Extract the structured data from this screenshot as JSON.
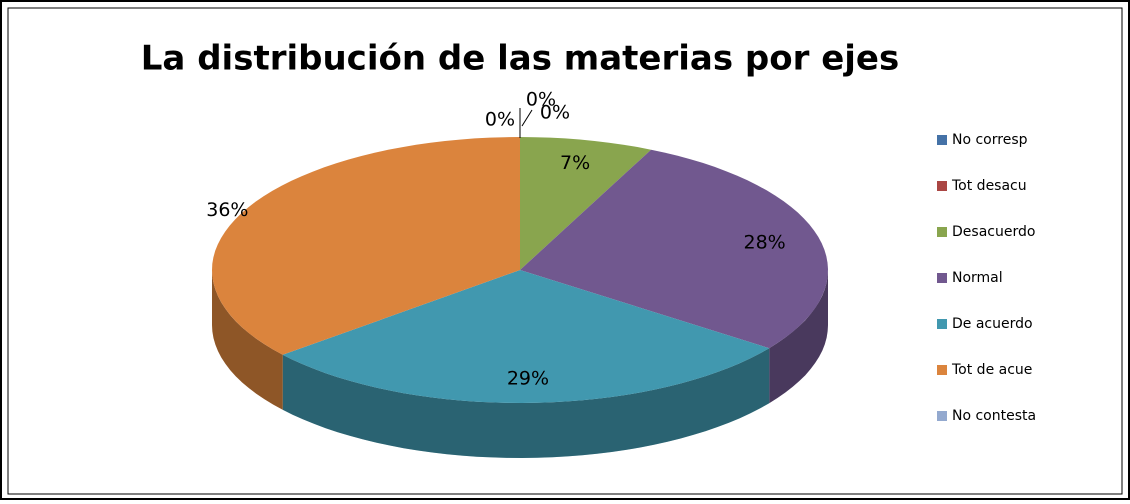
{
  "chart_data": {
    "type": "pie",
    "title": "La distribución de las materias por ejes",
    "categories": [
      "No corresp",
      "Tot desacu",
      "Desacuerdo",
      "Normal",
      "De acuerdo",
      "Tot de acue",
      "No contesta"
    ],
    "values": [
      0,
      0,
      7,
      28,
      29,
      36,
      0
    ],
    "value_labels": [
      "0%",
      "0%",
      "7%",
      "28%",
      "29%",
      "36%",
      "0%"
    ],
    "colors": [
      "#4572a7",
      "#aa4643",
      "#89a54e",
      "#71588f",
      "#4198af",
      "#db843d",
      "#93a9cf"
    ],
    "legend": "right"
  }
}
